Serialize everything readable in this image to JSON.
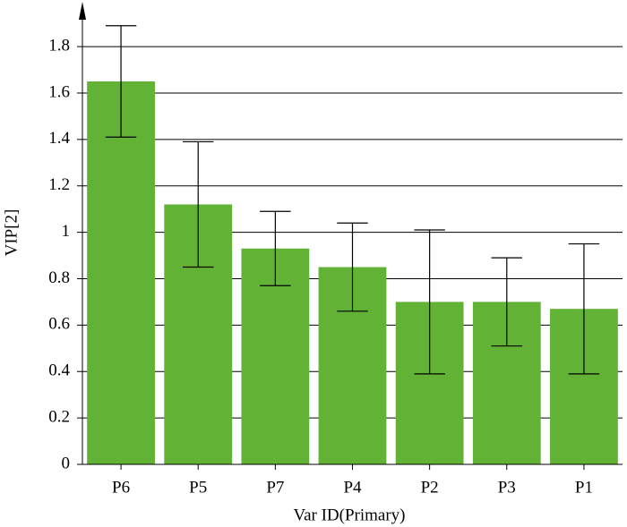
{
  "chart_data": {
    "type": "bar",
    "x_label": "Var ID(Primary)",
    "y_label": "VIP[2]",
    "categories": [
      "P6",
      "P5",
      "P7",
      "P4",
      "P2",
      "P3",
      "P1"
    ],
    "values": [
      1.65,
      1.12,
      0.93,
      0.85,
      0.7,
      0.7,
      0.67
    ],
    "errors": [
      0.24,
      0.27,
      0.16,
      0.19,
      0.31,
      0.19,
      0.28
    ],
    "color": "#62b236",
    "ylim": [
      0,
      1.97
    ],
    "yticks": [
      0,
      0.2,
      0.4,
      0.6,
      0.8,
      1,
      1.2,
      1.4,
      1.6,
      1.8
    ],
    "grid": true
  }
}
